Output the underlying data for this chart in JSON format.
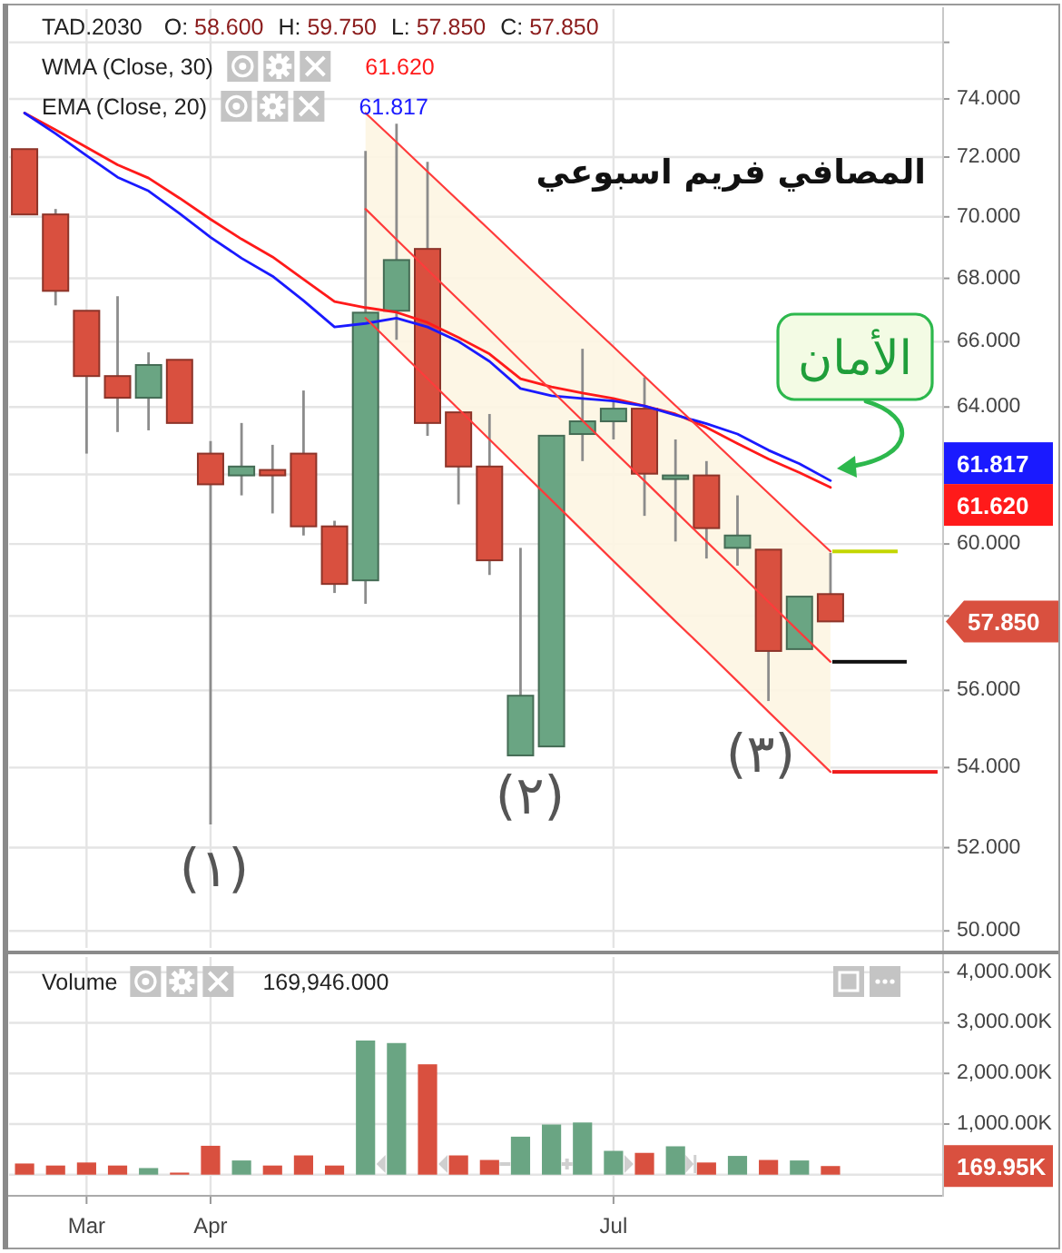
{
  "chart_data": [
    {
      "type": "candlestick",
      "title": "المصافي فريم اسبوعي",
      "subtitle": "TAD.2030",
      "categories": [
        null,
        null,
        null,
        null,
        null,
        null,
        null,
        null,
        null,
        null,
        null,
        null,
        null,
        null,
        null,
        null,
        null,
        null,
        null,
        null,
        null,
        null,
        null,
        null,
        null,
        null,
        null
      ],
      "ohlc": [
        [
          72.27,
          72.27,
          70.08,
          70.08
        ],
        [
          70.08,
          70.26,
          67.14,
          67.6
        ],
        [
          66.97,
          66.97,
          62.61,
          64.94
        ],
        [
          64.94,
          67.43,
          63.25,
          64.28
        ],
        [
          64.28,
          65.67,
          63.3,
          65.28
        ],
        [
          65.44,
          65.44,
          63.52,
          63.52
        ],
        [
          62.61,
          62.98,
          52.57,
          61.71
        ],
        [
          61.97,
          63.52,
          61.39,
          62.23
        ],
        [
          62.13,
          62.87,
          60.87,
          61.97
        ],
        [
          62.61,
          64.5,
          60.24,
          60.5
        ],
        [
          60.5,
          60.66,
          58.63,
          58.88
        ],
        [
          58.98,
          72.21,
          58.33,
          66.91
        ],
        [
          66.97,
          73.14,
          66.06,
          68.59
        ],
        [
          68.95,
          71.84,
          63.14,
          63.52
        ],
        [
          63.84,
          63.84,
          61.13,
          62.23
        ],
        [
          62.23,
          63.79,
          59.13,
          59.54
        ],
        [
          54.31,
          59.89,
          54.31,
          55.86
        ],
        [
          54.54,
          63.14,
          54.54,
          63.14
        ],
        [
          63.19,
          65.78,
          62.39,
          63.57
        ],
        [
          63.57,
          64.28,
          63.03,
          63.95
        ],
        [
          63.95,
          64.9,
          60.8,
          62.02
        ],
        [
          61.95,
          63.03,
          60.07,
          61.97
        ],
        [
          61.97,
          62.39,
          59.59,
          60.45
        ],
        [
          59.89,
          61.39,
          59.39,
          60.24
        ],
        [
          59.84,
          59.84,
          55.72,
          57.05
        ],
        [
          57.1,
          58.53,
          57.1,
          58.53
        ],
        [
          58.6,
          59.75,
          57.85,
          57.85
        ]
      ],
      "colors": [
        "#d9503f",
        "#d9503f",
        "#d9503f",
        "#d9503f",
        "#6aa583",
        "#d9503f",
        "#d9503f",
        "#6aa583",
        "#d9503f",
        "#d9503f",
        "#d9503f",
        "#6aa583",
        "#6aa583",
        "#d9503f",
        "#d9503f",
        "#d9503f",
        "#6aa583",
        "#6aa583",
        "#6aa583",
        "#6aa583",
        "#d9503f",
        "#6aa583",
        "#d9503f",
        "#6aa583",
        "#d9503f",
        "#6aa583",
        "#d9503f"
      ],
      "series": [
        {
          "name": "WMA (Close, 30)",
          "type": "line",
          "color": "#ff1a1a",
          "values": [
            73.51,
            72.93,
            72.33,
            71.74,
            71.29,
            70.62,
            69.92,
            69.27,
            68.69,
            67.97,
            67.26,
            67.07,
            66.92,
            66.6,
            66.13,
            65.62,
            64.86,
            64.61,
            64.42,
            64.26,
            64.03,
            63.79,
            63.39,
            62.91,
            62.45,
            62.05,
            61.62
          ]
        },
        {
          "name": "EMA (Close, 20)",
          "type": "line",
          "color": "#1a1aff",
          "values": [
            73.51,
            72.8,
            72.05,
            71.32,
            70.86,
            70.11,
            69.33,
            68.65,
            68.07,
            67.29,
            66.46,
            66.57,
            66.74,
            66.46,
            66.01,
            65.39,
            64.56,
            64.34,
            64.26,
            64.18,
            64.03,
            63.76,
            63.5,
            63.19,
            62.71,
            62.31,
            61.817
          ]
        },
        {
          "type": "line",
          "color": "#ff3b3b",
          "values": [
            null,
            null,
            null,
            null,
            null,
            null,
            null,
            null,
            null,
            null,
            null,
            73.51,
            72.51,
            71.51,
            70.53,
            69.57,
            68.61,
            67.67,
            66.75,
            65.84,
            64.93,
            64.04,
            63.17,
            62.3,
            61.45,
            60.61,
            59.79
          ]
        },
        {
          "type": "line",
          "color": "#ff3b3b",
          "values": [
            null,
            null,
            null,
            null,
            null,
            null,
            null,
            null,
            null,
            null,
            null,
            70.26,
            69.26,
            68.28,
            67.32,
            66.37,
            65.42,
            64.5,
            63.59,
            62.69,
            61.81,
            60.93,
            60.07,
            59.23,
            58.39,
            57.56,
            56.76
          ],
          "upper": [
            null,
            null,
            null,
            null,
            null,
            null,
            null,
            null,
            null,
            null,
            null,
            73.51,
            72.51,
            71.51,
            70.53,
            69.57,
            68.61,
            67.67,
            66.75,
            65.84,
            64.93,
            64.04,
            63.17,
            62.3,
            61.45,
            60.61,
            59.79
          ],
          "lower": [
            null,
            null,
            null,
            null,
            null,
            null,
            null,
            null,
            null,
            null,
            null,
            66.74,
            65.79,
            64.86,
            63.94,
            63.03,
            62.13,
            61.25,
            60.38,
            59.52,
            58.68,
            57.85,
            57.05,
            56.24,
            55.44,
            54.66,
            53.89
          ]
        },
        {
          "type": "line",
          "color": "#ff3b3b",
          "values": [
            null,
            null,
            null,
            null,
            null,
            null,
            null,
            null,
            null,
            null,
            null,
            66.74,
            65.79,
            64.86,
            63.94,
            63.03,
            62.13,
            61.25,
            60.38,
            59.52,
            58.68,
            57.85,
            57.05,
            56.24,
            55.44,
            54.66,
            53.89
          ]
        }
      ],
      "ylim": [
        49.6,
        77.2
      ],
      "yticks": [
        {
          "value": 50,
          "label": "50.000"
        },
        {
          "value": 52,
          "label": "52.000"
        },
        {
          "value": 54,
          "label": "54.000"
        },
        {
          "value": 56,
          "label": "56.000"
        },
        {
          "value": 58,
          "label": null
        },
        {
          "value": 60,
          "label": "60.000"
        },
        {
          "value": 62,
          "label": null
        },
        {
          "value": 64,
          "label": "64.000"
        },
        {
          "value": 66,
          "label": "66.000"
        },
        {
          "value": 68,
          "label": "68.000"
        },
        {
          "value": 70,
          "label": "70.000"
        },
        {
          "value": 72,
          "label": "72.000"
        },
        {
          "value": 74,
          "label": "74.000"
        },
        {
          "value": 76,
          "label": null
        }
      ],
      "log": true,
      "grid": true,
      "legend": "top left",
      "annotations": [
        "O: 58.600",
        "H: 59.750",
        "L: 57.850",
        "C: 57.850",
        "61.620",
        "61.817",
        "الأمان",
        "(١)",
        "(٢)",
        "(٣)",
        "61.817",
        "61.620",
        "57.850"
      ]
    },
    {
      "type": "bar",
      "categories": [
        null,
        null,
        "Mar",
        null,
        null,
        null,
        "Apr",
        null,
        null,
        null,
        null,
        null,
        null,
        null,
        null,
        null,
        null,
        null,
        null,
        "Jul",
        null,
        null,
        null,
        null,
        null,
        null,
        null
      ],
      "series": [
        {
          "name": "Volume",
          "values": [
            220,
            180,
            240,
            180,
            130,
            40,
            570,
            280,
            180,
            380,
            180,
            2650,
            2600,
            2180,
            380,
            290,
            750,
            990,
            1030,
            470,
            430,
            560,
            240,
            370,
            290,
            280,
            170
          ],
          "colors": [
            "#d9503f",
            "#d9503f",
            "#d9503f",
            "#d9503f",
            "#6aa583",
            "#d9503f",
            "#d9503f",
            "#6aa583",
            "#d9503f",
            "#d9503f",
            "#d9503f",
            "#6aa583",
            "#6aa583",
            "#d9503f",
            "#d9503f",
            "#d9503f",
            "#6aa583",
            "#6aa583",
            "#6aa583",
            "#6aa583",
            "#d9503f",
            "#6aa583",
            "#d9503f",
            "#6aa583",
            "#d9503f",
            "#6aa583",
            "#d9503f"
          ]
        }
      ],
      "ylim": [
        -400,
        4300
      ],
      "yticks": [
        {
          "value": 0,
          "label": null
        },
        {
          "value": 1000,
          "label": "1,000.00K"
        },
        {
          "value": 2000,
          "label": "2,000.00K"
        },
        {
          "value": 3000,
          "label": "3,000.00K"
        },
        {
          "value": 4000,
          "label": "4,000.00K"
        }
      ],
      "grid": true,
      "legend": "top left",
      "annotations": [
        "169,946.000",
        "169.95K"
      ]
    }
  ]
}
